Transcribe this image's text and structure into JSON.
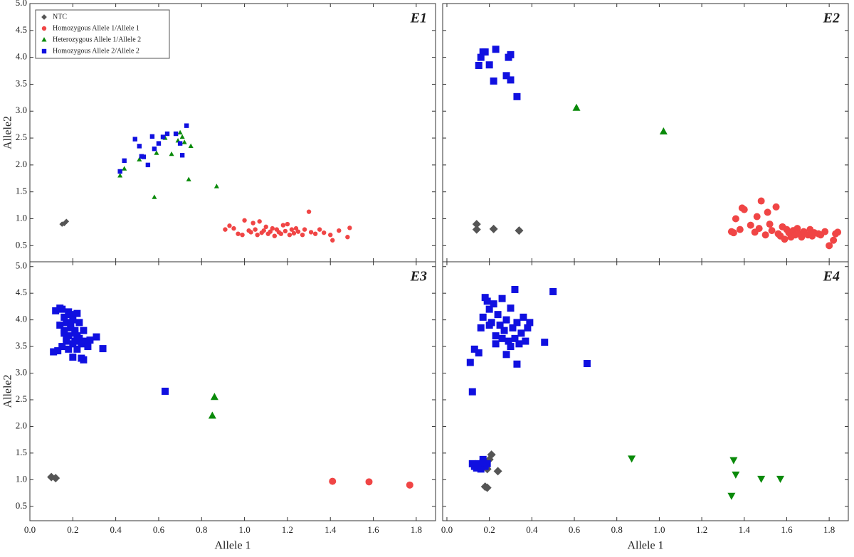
{
  "chart_data": [
    {
      "type": "scatter",
      "title": "E1",
      "ylabel": "Allele2",
      "xlim": [
        0,
        1.89
      ],
      "ylim": [
        0.2,
        5.0
      ],
      "yticks": [
        0.5,
        {
          "value": 1,
          "label": "1.0"
        },
        1.5,
        {
          "value": 2,
          "label": "2.0"
        },
        2.5,
        {
          "value": 3,
          "label": "3.0"
        },
        3.5,
        {
          "value": 4,
          "label": "4.0"
        },
        4.5,
        {
          "value": 5,
          "label": "5.0"
        }
      ],
      "series": [
        {
          "name": "NTC",
          "color": "#555555",
          "marker": "diamond",
          "x": [
            0.15,
            0.17,
            0.16
          ],
          "y": [
            0.9,
            0.95,
            0.91
          ]
        },
        {
          "name": "Homozygous Allele 1/Allele 1",
          "color": "#f04545",
          "marker": "circle",
          "x": [
            0.91,
            0.93,
            0.95,
            0.97,
            0.99,
            1.0,
            1.02,
            1.03,
            1.04,
            1.05,
            1.06,
            1.07,
            1.08,
            1.09,
            1.1,
            1.11,
            1.12,
            1.13,
            1.14,
            1.15,
            1.16,
            1.17,
            1.18,
            1.19,
            1.2,
            1.21,
            1.22,
            1.23,
            1.24,
            1.25,
            1.27,
            1.28,
            1.3,
            1.31,
            1.33,
            1.35,
            1.37,
            1.4,
            1.41,
            1.44,
            1.48,
            1.49
          ],
          "y": [
            0.8,
            0.87,
            0.82,
            0.72,
            0.7,
            0.97,
            0.78,
            0.75,
            0.92,
            0.8,
            0.7,
            0.95,
            0.74,
            0.78,
            0.85,
            0.72,
            0.76,
            0.82,
            0.68,
            0.8,
            0.75,
            0.72,
            0.88,
            0.77,
            0.9,
            0.7,
            0.8,
            0.73,
            0.82,
            0.76,
            0.7,
            0.8,
            1.13,
            0.75,
            0.72,
            0.8,
            0.74,
            0.7,
            0.6,
            0.78,
            0.66,
            0.83
          ]
        },
        {
          "name": "Heterozygous Allele 1/Allele 2",
          "color": "#0a8a0a",
          "marker": "triangle-up",
          "x": [
            0.42,
            0.44,
            0.51,
            0.58,
            0.59,
            0.63,
            0.66,
            0.69,
            0.7,
            0.71,
            0.72,
            0.74,
            0.75,
            0.87
          ],
          "y": [
            1.8,
            1.93,
            2.1,
            1.4,
            2.22,
            2.5,
            2.2,
            2.45,
            2.6,
            2.52,
            2.42,
            1.73,
            2.35,
            1.6
          ]
        },
        {
          "name": "Homozygous Allele 2/Allele 2",
          "color": "#1010e0",
          "marker": "square",
          "x": [
            0.42,
            0.44,
            0.49,
            0.51,
            0.52,
            0.53,
            0.55,
            0.57,
            0.58,
            0.6,
            0.62,
            0.64,
            0.68,
            0.7,
            0.71,
            0.73
          ],
          "y": [
            1.88,
            2.08,
            2.48,
            2.35,
            2.16,
            2.15,
            2.0,
            2.53,
            2.3,
            2.4,
            2.52,
            2.58,
            2.58,
            2.4,
            2.18,
            2.73
          ]
        }
      ]
    },
    {
      "type": "scatter",
      "title": "E2",
      "xlim": [
        -0.02,
        1.89
      ],
      "ylim": [
        0.2,
        5.0
      ],
      "series": [
        {
          "color": "#555555",
          "marker": "diamond",
          "x": [
            0.14,
            0.14,
            0.22,
            0.34
          ],
          "y": [
            0.8,
            0.9,
            0.81,
            0.78
          ]
        },
        {
          "color": "#f04545",
          "marker": "circle",
          "x": [
            1.34,
            1.35,
            1.36,
            1.38,
            1.39,
            1.4,
            1.43,
            1.45,
            1.46,
            1.47,
            1.48,
            1.5,
            1.51,
            1.52,
            1.53,
            1.55,
            1.56,
            1.57,
            1.58,
            1.59,
            1.6,
            1.61,
            1.62,
            1.63,
            1.64,
            1.65,
            1.66,
            1.67,
            1.68,
            1.7,
            1.71,
            1.72,
            1.73,
            1.75,
            1.76,
            1.78,
            1.8,
            1.82,
            1.83,
            1.84
          ],
          "y": [
            0.76,
            0.74,
            1.0,
            0.8,
            1.2,
            1.17,
            0.88,
            0.75,
            1.04,
            0.82,
            1.33,
            0.7,
            1.12,
            0.9,
            0.78,
            1.22,
            0.72,
            0.68,
            0.85,
            0.62,
            0.8,
            0.74,
            0.66,
            0.78,
            0.7,
            0.82,
            0.72,
            0.66,
            0.76,
            0.7,
            0.8,
            0.68,
            0.74,
            0.72,
            0.7,
            0.76,
            0.5,
            0.6,
            0.72,
            0.75
          ]
        },
        {
          "color": "#0a8a0a",
          "marker": "triangle-up",
          "x": [
            0.61,
            1.02
          ],
          "y": [
            3.06,
            2.62
          ]
        },
        {
          "color": "#1010e0",
          "marker": "square",
          "x": [
            0.15,
            0.16,
            0.17,
            0.18,
            0.2,
            0.22,
            0.23,
            0.28,
            0.29,
            0.3,
            0.3,
            0.33
          ],
          "y": [
            3.85,
            4.0,
            4.1,
            4.1,
            3.86,
            3.56,
            4.15,
            3.66,
            4.0,
            4.05,
            3.58,
            3.27
          ]
        }
      ]
    },
    {
      "type": "scatter",
      "title": "E3",
      "ylabel": "Allele2",
      "xlabel": "Allele 1",
      "xlim": [
        0,
        1.89
      ],
      "ylim": [
        0.23,
        5.09
      ],
      "xticks": [
        {
          "value": 0,
          "label": "0.0"
        },
        0.2,
        0.4,
        0.6,
        0.8,
        {
          "value": 1,
          "label": "1.0"
        },
        1.2,
        1.4,
        1.6,
        1.8
      ],
      "yticks": [
        0.5,
        {
          "value": 1,
          "label": "1.0"
        },
        1.5,
        {
          "value": 2,
          "label": "2.0"
        },
        2.5,
        {
          "value": 3,
          "label": "3.0"
        },
        3.5,
        {
          "value": 4,
          "label": "4.0"
        },
        4.5,
        {
          "value": 5,
          "label": "5.0"
        }
      ],
      "series": [
        {
          "color": "#555555",
          "marker": "diamond",
          "x": [
            0.1,
            0.12
          ],
          "y": [
            1.05,
            1.03
          ]
        },
        {
          "color": "#f04545",
          "marker": "circle",
          "x": [
            1.41,
            1.58,
            1.77
          ],
          "y": [
            0.97,
            0.96,
            0.9
          ]
        },
        {
          "color": "#0a8a0a",
          "marker": "triangle-up",
          "x": [
            0.86,
            0.85
          ],
          "y": [
            2.55,
            2.2
          ]
        },
        {
          "color": "#1010e0",
          "marker": "square",
          "x": [
            0.11,
            0.12,
            0.13,
            0.14,
            0.14,
            0.15,
            0.15,
            0.16,
            0.16,
            0.17,
            0.17,
            0.18,
            0.18,
            0.18,
            0.19,
            0.19,
            0.2,
            0.2,
            0.2,
            0.21,
            0.21,
            0.22,
            0.22,
            0.23,
            0.23,
            0.24,
            0.24,
            0.25,
            0.25,
            0.26,
            0.27,
            0.28,
            0.31,
            0.34,
            0.63,
            0.19,
            0.21,
            0.17,
            0.22,
            0.16
          ],
          "y": [
            3.4,
            4.17,
            3.42,
            4.22,
            3.9,
            3.5,
            4.2,
            3.75,
            4.05,
            3.6,
            3.95,
            4.15,
            3.7,
            3.45,
            4.1,
            3.85,
            3.55,
            3.3,
            4.0,
            3.75,
            3.6,
            4.12,
            3.45,
            3.65,
            3.95,
            3.55,
            3.28,
            3.8,
            3.25,
            3.6,
            3.5,
            3.62,
            3.68,
            3.46,
            2.66,
            3.9,
            3.8,
            3.65,
            3.7,
            3.8
          ]
        }
      ]
    },
    {
      "type": "scatter",
      "title": "E4",
      "xlabel": "Allele 1",
      "xlim": [
        -0.02,
        1.89
      ],
      "ylim": [
        0.23,
        5.09
      ],
      "xticks": [
        {
          "value": 0,
          "label": "0.0"
        },
        0.2,
        0.4,
        0.6,
        0.8,
        {
          "value": 1,
          "label": "1.0"
        },
        1.2,
        1.4,
        1.6,
        1.8
      ],
      "series": [
        {
          "color": "#555555",
          "marker": "diamond",
          "x": [
            0.18,
            0.19,
            0.2,
            0.21,
            0.24,
            0.19
          ],
          "y": [
            0.87,
            0.85,
            1.38,
            1.47,
            1.16,
            1.2
          ]
        },
        {
          "color": "#0a8a0a",
          "marker": "triangle-down",
          "x": [
            0.87,
            1.34,
            1.35,
            1.36,
            1.48,
            1.57
          ],
          "y": [
            1.4,
            0.7,
            1.37,
            1.1,
            1.02,
            1.02
          ]
        },
        {
          "color": "#1010e0",
          "marker": "square",
          "x": [
            0.11,
            0.12,
            0.13,
            0.15,
            0.16,
            0.17,
            0.18,
            0.19,
            0.2,
            0.2,
            0.21,
            0.22,
            0.23,
            0.23,
            0.24,
            0.25,
            0.26,
            0.26,
            0.27,
            0.28,
            0.28,
            0.29,
            0.3,
            0.3,
            0.31,
            0.32,
            0.32,
            0.33,
            0.33,
            0.34,
            0.35,
            0.36,
            0.37,
            0.38,
            0.39,
            0.46,
            0.5,
            0.66,
            0.12,
            0.13,
            0.14,
            0.15,
            0.16,
            0.17,
            0.18,
            0.19,
            0.14,
            0.17
          ],
          "y": [
            3.2,
            2.65,
            3.45,
            3.38,
            3.85,
            4.05,
            4.42,
            4.35,
            3.9,
            4.2,
            3.95,
            4.3,
            3.55,
            3.7,
            4.1,
            3.9,
            4.4,
            3.65,
            3.8,
            4.0,
            3.35,
            3.6,
            4.22,
            3.5,
            3.85,
            4.57,
            3.65,
            3.17,
            3.95,
            3.55,
            3.75,
            4.05,
            3.6,
            3.85,
            3.95,
            3.58,
            4.53,
            3.18,
            1.3,
            1.25,
            1.22,
            1.3,
            1.2,
            1.38,
            1.25,
            1.3,
            1.28,
            1.32
          ]
        }
      ]
    }
  ]
}
